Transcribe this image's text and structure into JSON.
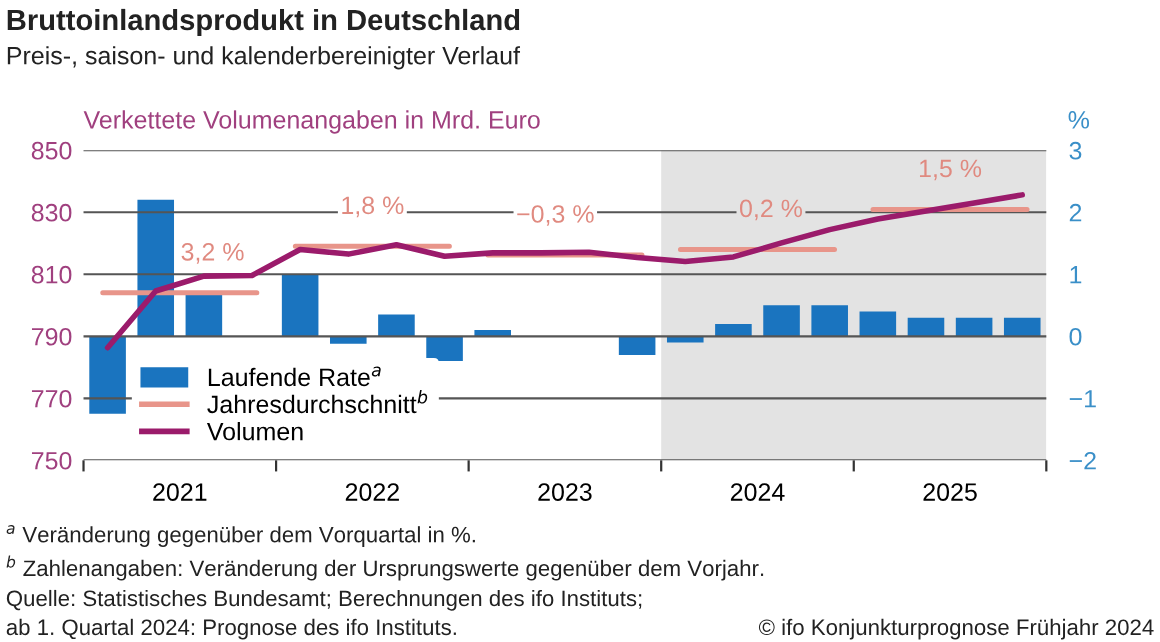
{
  "chart_data": {
    "type": "bar",
    "title": "Bruttoinlandsprodukt in Deutschland",
    "subtitle": "Preis-, saison- und kalenderbereinigter Verlauf",
    "ylabel": "Verkettete Volumenangaben in Mrd. Euro",
    "y2label": "%",
    "x": [
      2021.125,
      2021.375,
      2021.625,
      2021.875,
      2022.125,
      2022.375,
      2022.625,
      2022.875,
      2023.125,
      2023.375,
      2023.625,
      2023.875,
      2024.125,
      2024.375,
      2024.625,
      2024.875,
      2025.125,
      2025.375,
      2025.625,
      2025.875
    ],
    "xlim": [
      2021,
      2026
    ],
    "xticks": [
      {
        "value": 2021,
        "label": null
      },
      {
        "value": 2022,
        "label": null
      },
      {
        "value": 2023,
        "label": null
      },
      {
        "value": 2024,
        "label": null
      },
      {
        "value": 2025,
        "label": null
      },
      {
        "value": 2026,
        "label": null
      },
      {
        "value": 2021.5,
        "label": "2021"
      },
      {
        "value": 2022.5,
        "label": "2022"
      },
      {
        "value": 2023.5,
        "label": "2023"
      },
      {
        "value": 2024.5,
        "label": "2024"
      },
      {
        "value": 2025.5,
        "label": "2025"
      }
    ],
    "ylim": [
      750,
      850
    ],
    "yticks": [
      750,
      770,
      790,
      810,
      830,
      850
    ],
    "y2lim": [
      -2,
      3
    ],
    "y2ticks": [
      {
        "value": -2,
        "label": "−2"
      },
      {
        "value": -1,
        "label": "−1"
      },
      0,
      1,
      2,
      3
    ],
    "series": [
      {
        "name": "Laufende Rate$^{a}$",
        "axis": "y2",
        "color": "#1a74bf",
        "values": [
          -1.25,
          2.2,
          0.67,
          0.0,
          1.0,
          -0.12,
          0.35,
          -0.4,
          0.1,
          0.0,
          0.0,
          -0.3,
          -0.1,
          0.2,
          0.5,
          0.5,
          0.4,
          0.3,
          0.3,
          0.3
        ]
      },
      {
        "name": "Jahresdurchschnitt$^{b}$",
        "type": "line",
        "color": "#e8958a",
        "x": [
          2021.1,
          2021.9,
          2021.95,
          2022.1,
          2022.9,
          2022.95,
          2023.1,
          2023.9,
          2023.95,
          2024.1,
          2024.9,
          2024.95,
          2025.1,
          2025.9
        ],
        "values": [
          804,
          804,
          null,
          819,
          819,
          null,
          816.2,
          816.2,
          null,
          818,
          818,
          null,
          830.9,
          830.9
        ]
      },
      {
        "name": "Volumen",
        "type": "line",
        "color": "#9b1b6b",
        "values": [
          786.3,
          804.6,
          809.4,
          809.6,
          818,
          816.5,
          819.5,
          815.8,
          816.9,
          816.9,
          817.1,
          815.4,
          814.1,
          815.6,
          820.1,
          824.4,
          827.8,
          830.4,
          833,
          835.6
        ]
      }
    ],
    "bands": [
      {
        "axis": "x",
        "from": 2024,
        "to": 2026,
        "color": "#e3e3e3"
      }
    ],
    "annotations": [
      {
        "text": "3,2 %",
        "x": 2021.67,
        "y": 804
      },
      {
        "text": "1,8 %",
        "x": 2022.5,
        "y": 819
      },
      {
        "text": "−0,3 %",
        "x": 2023.45,
        "y": 816.2
      },
      {
        "text": "0,2 %",
        "x": 2024.57,
        "y": 818
      },
      {
        "text": "1,5 %",
        "x": 2025.5,
        "y": 830.9
      },
      "$^{a}$ Veränderung gegenüber dem Vorquartal in %.",
      "$^{b}$ Zahlenangaben: Veränderung der Ursprungswerte gegenüber dem Vorjahr.",
      "Quelle: Statistisches Bundesamt; Berechnungen des ifo Instituts;",
      "ab 1. Quartal 2024: Prognose des ifo Instituts.",
      "© ifo Konjunkturprognose Frühjahr 2024"
    ],
    "grid": "y",
    "legend": "bottom left"
  }
}
